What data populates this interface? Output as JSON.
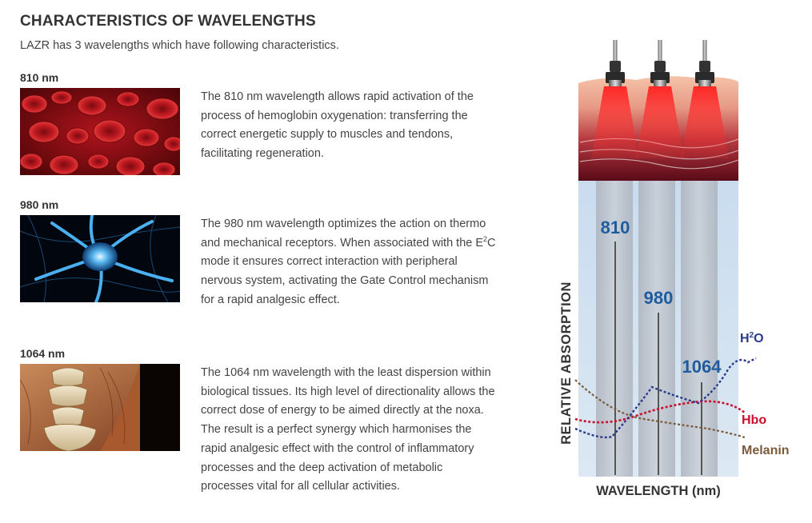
{
  "page": {
    "title": "CHARACTERISTICS OF WAVELENGTHS",
    "intro": "LAZR has 3 wavelengths which have following characteristics."
  },
  "wavelengths": [
    {
      "label": "810 nm",
      "image": "red-blood-cells",
      "description": "The 810 nm wavelength allows rapid activation of the process of hemoglobin oxygenation: transferring the correct energetic supply to muscles and tendons, facilitating regeneration."
    },
    {
      "label": "980 nm",
      "image": "nerve-cell",
      "description_before": "The 980 nm wavelength optimizes the action on thermo and mechanical receptors. When associated with the E",
      "description_sup": "2",
      "description_after": "C mode it ensures correct interaction with peripheral nervous system, activating the Gate Control mechanism for a rapid analgesic effect."
    },
    {
      "label": "1064 nm",
      "image": "lumbar-spine-muscles",
      "description_p1": "The 1064 nm wavelength with the least dispersion within biological tissues. Its high level of directionality allows the correct dose of energy to be aimed directly at the noxa.",
      "description_p2": "The result is a perfect synergy which harmonises the rapid analgesic effect with the control of inflammatory processes and the deep activation of metabolic processes vital for all cellular activities."
    }
  ],
  "diagram": {
    "bar_labels": [
      "810",
      "980",
      "1064"
    ],
    "y_axis_label": "RELATIVE ABSORPTION",
    "x_axis_label": "WAVELENGTH (nm)",
    "curve_labels": {
      "h2o_before": "H",
      "h2o_sup": "2",
      "h2o_after": "O",
      "hbo": "Hbo",
      "melanin": "Melanin"
    },
    "colors": {
      "bar_label": "#1f5c9e",
      "h2o": "#2b3a8c",
      "hbo": "#c8102e",
      "melanin": "#7a5a3a",
      "axis_text": "#333333"
    }
  }
}
